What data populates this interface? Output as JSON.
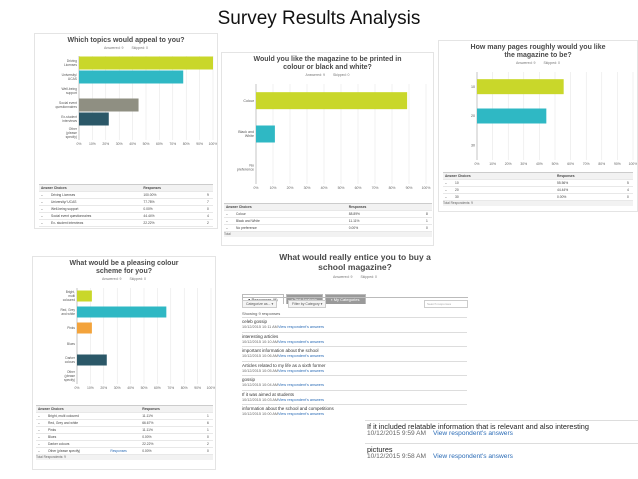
{
  "page_title": "Survey Results Analysis",
  "colors": {
    "lime": "#c9d72a",
    "teal": "#2fb8c4",
    "gray": "#8f8f82",
    "navy": "#2b5868",
    "orange": "#f3a33b"
  },
  "chart_data": [
    {
      "type": "bar",
      "orientation": "horizontal",
      "title": "Which topics would appeal to you?",
      "answered": "Answered: 9",
      "skipped": "Skipped: 0",
      "categories": [
        "Driving Licenses",
        "University/ UCAS",
        "Well-being support",
        "Social event questionnaires",
        "Ex-student interviews",
        "Other (please specify)"
      ],
      "values": [
        100,
        77.78,
        0,
        44.44,
        22.22,
        0
      ],
      "bar_colors": [
        "#c9d72a",
        "#2fb8c4",
        "#2fb8c4",
        "#8f8f82",
        "#2b5868",
        "#2b5868"
      ],
      "xlim": [
        0,
        100
      ],
      "xticks": [
        "0%",
        "10%",
        "20%",
        "30%",
        "40%",
        "50%",
        "60%",
        "70%",
        "80%",
        "90%",
        "100%"
      ],
      "table": {
        "headers": [
          "Answer Choices",
          "Responses"
        ],
        "rows": [
          [
            "Driving Licenses",
            "100.00%",
            "9"
          ],
          [
            "University/ UCAS",
            "77.78%",
            "7"
          ],
          [
            "Well-being support",
            "0.00%",
            "0"
          ],
          [
            "Social event questionnaires",
            "44.44%",
            "4"
          ],
          [
            "Ex- student interviews",
            "22.22%",
            "2"
          ],
          [
            "Other (please specify)",
            "0.00%",
            "0"
          ]
        ],
        "responses_link": "Responses",
        "total": "Total Respondents: 9"
      }
    },
    {
      "type": "bar",
      "orientation": "horizontal",
      "title": "Would you like the magazine to be printed in colour or black and white?",
      "answered": "Answered: 9",
      "skipped": "Skipped: 0",
      "categories": [
        "Colour",
        "Black and White",
        "No preference"
      ],
      "values": [
        88.89,
        11.11,
        0
      ],
      "bar_colors": [
        "#c9d72a",
        "#2fb8c4",
        "#2fb8c4"
      ],
      "xlim": [
        0,
        100
      ],
      "xticks": [
        "0%",
        "10%",
        "20%",
        "30%",
        "40%",
        "50%",
        "60%",
        "70%",
        "80%",
        "90%",
        "100%"
      ],
      "table": {
        "headers": [
          "Answer Choices",
          "Responses"
        ],
        "rows": [
          [
            "Colour",
            "88.89%",
            "8"
          ],
          [
            "Black and White",
            "11.11%",
            "1"
          ],
          [
            "No preference",
            "0.00%",
            "0"
          ]
        ],
        "total": "Total"
      }
    },
    {
      "type": "bar",
      "orientation": "horizontal",
      "title": "How many pages roughly would you like the magazine to be?",
      "answered": "Answered: 9",
      "skipped": "Skipped: 0",
      "categories": [
        "10",
        "20",
        "30"
      ],
      "values": [
        55.56,
        44.44,
        0
      ],
      "bar_colors": [
        "#c9d72a",
        "#2fb8c4",
        "#2fb8c4"
      ],
      "xlim": [
        0,
        100
      ],
      "xticks": [
        "0%",
        "10%",
        "20%",
        "30%",
        "40%",
        "50%",
        "60%",
        "70%",
        "80%",
        "90%",
        "100%"
      ],
      "table": {
        "headers": [
          "Answer Choices",
          "Responses"
        ],
        "rows": [
          [
            "10",
            "55.56%",
            "5"
          ],
          [
            "20",
            "44.44%",
            "4"
          ],
          [
            "30",
            "0.00%",
            "0"
          ]
        ],
        "total": "Total Respondents: 9"
      }
    },
    {
      "type": "bar",
      "orientation": "horizontal",
      "title": "What would be a pleasing colour scheme for you?",
      "answered": "Answered: 9",
      "skipped": "Skipped: 0",
      "categories": [
        "Bright, multi coloured",
        "Red, Grey and white",
        "Pinks",
        "Blues",
        "Darker colours",
        "Other (please specify)"
      ],
      "values": [
        11.11,
        66.67,
        11.11,
        0,
        22.22,
        0
      ],
      "bar_colors": [
        "#c9d72a",
        "#2fb8c4",
        "#f3a33b",
        "#2fb8c4",
        "#2b5868",
        "#2b5868"
      ],
      "xlim": [
        0,
        100
      ],
      "xticks": [
        "0%",
        "10%",
        "20%",
        "30%",
        "40%",
        "50%",
        "60%",
        "70%",
        "80%",
        "90%",
        "100%"
      ],
      "table": {
        "headers": [
          "Answer Choices",
          "Responses"
        ],
        "rows": [
          [
            "Bright, multi coloured",
            "11.11%",
            "1"
          ],
          [
            "Red, Grey and white",
            "66.67%",
            "6"
          ],
          [
            "Pinks",
            "11.11%",
            "1"
          ],
          [
            "Blues",
            "0.00%",
            "0"
          ],
          [
            "Darker colours",
            "22.22%",
            "2"
          ],
          [
            "Other (please specify)",
            "0.00%",
            "0"
          ]
        ],
        "responses_link": "Responses",
        "total": "Total Respondents: 9"
      }
    }
  ],
  "open_question": {
    "title": "What would really entice you to buy a school magazine?",
    "answered": "Answered: 9",
    "skipped": "Skipped: 0",
    "tabs": [
      "Responses (9)",
      "Text Analysis",
      "My Categories"
    ],
    "filter_categorize": "Categorize as... ▾",
    "filter_category": "Filter by Category ▾",
    "search_placeholder": "Search responses",
    "showing": "Showing 9 responses",
    "link_text": "View respondent's answers",
    "responses": [
      {
        "text": "celeb gossip",
        "date": "10/12/2015 10:11 AM"
      },
      {
        "text": "interesting articles",
        "date": "10/12/2015 10:10 AM"
      },
      {
        "text": "important information about the school",
        "date": "10/12/2015 10:06 AM"
      },
      {
        "text": "Articles related to my life as a sixth former",
        "date": "10/12/2015 10:05 AM"
      },
      {
        "text": "gossip",
        "date": "10/12/2015 10:04 AM"
      },
      {
        "text": "If it was aimed at students",
        "date": "10/12/2015 10:03 AM"
      },
      {
        "text": "information about the school and competitions",
        "date": "10/12/2015 10:00 AM"
      }
    ],
    "large_responses": [
      {
        "text": "If it included relatable information that is relevant and also interesting",
        "date": "10/12/2015 9:59 AM"
      },
      {
        "text": "pictures",
        "date": "10/12/2015 9:58 AM"
      }
    ]
  }
}
